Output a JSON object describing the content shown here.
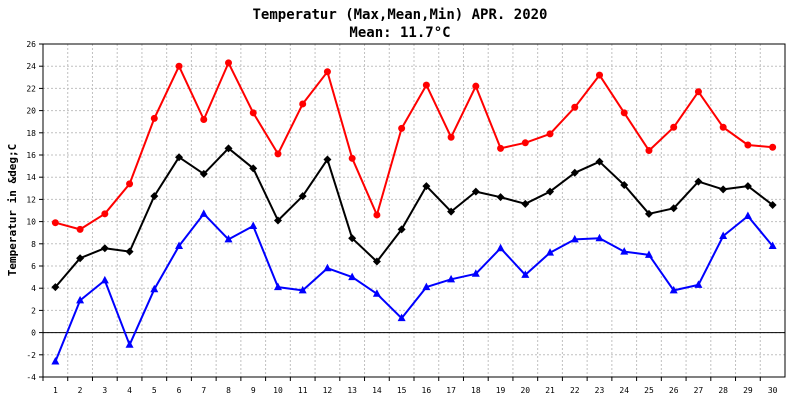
{
  "chart_data": {
    "type": "line",
    "title": "Temperatur (Max,Mean,Min) APR. 2020",
    "subtitle": "Mean: 11.7°C",
    "xlabel": "",
    "ylabel": "Temperatur in &deg;C",
    "ylim": [
      -4,
      26
    ],
    "yticks": [
      -4,
      -2,
      0,
      2,
      4,
      6,
      8,
      10,
      12,
      14,
      16,
      18,
      20,
      22,
      24,
      26
    ],
    "grid": true,
    "x": [
      1,
      2,
      3,
      4,
      5,
      6,
      7,
      8,
      9,
      10,
      11,
      12,
      13,
      14,
      15,
      16,
      17,
      18,
      19,
      20,
      21,
      22,
      23,
      24,
      25,
      26,
      27,
      28,
      29,
      30
    ],
    "series": [
      {
        "name": "Max",
        "color": "#ff0000",
        "marker": "circle",
        "values": [
          9.9,
          9.3,
          10.7,
          13.4,
          19.3,
          24.0,
          19.2,
          24.3,
          19.8,
          16.1,
          20.6,
          23.5,
          15.7,
          10.6,
          18.4,
          22.3,
          17.6,
          22.2,
          16.6,
          17.1,
          17.9,
          20.3,
          23.2,
          19.8,
          16.4,
          18.5,
          21.7,
          18.5,
          16.9,
          16.7
        ]
      },
      {
        "name": "Mean",
        "color": "#000000",
        "marker": "diamond",
        "values": [
          4.1,
          6.7,
          7.6,
          7.3,
          12.3,
          15.8,
          14.3,
          16.6,
          14.8,
          10.1,
          12.3,
          15.6,
          8.5,
          6.4,
          9.3,
          13.2,
          10.9,
          12.7,
          12.2,
          11.6,
          12.7,
          14.4,
          15.4,
          13.3,
          10.7,
          11.2,
          13.6,
          12.9,
          13.2,
          11.5
        ]
      },
      {
        "name": "Min",
        "color": "#0000ff",
        "marker": "triangle",
        "values": [
          -2.6,
          2.9,
          4.7,
          -1.1,
          3.9,
          7.8,
          10.7,
          8.4,
          9.6,
          4.1,
          3.8,
          5.8,
          5.0,
          3.5,
          1.3,
          4.1,
          4.8,
          5.3,
          7.6,
          5.2,
          7.2,
          8.4,
          8.5,
          7.3,
          7.0,
          3.8,
          4.3,
          8.7,
          10.5,
          7.8
        ]
      }
    ]
  }
}
